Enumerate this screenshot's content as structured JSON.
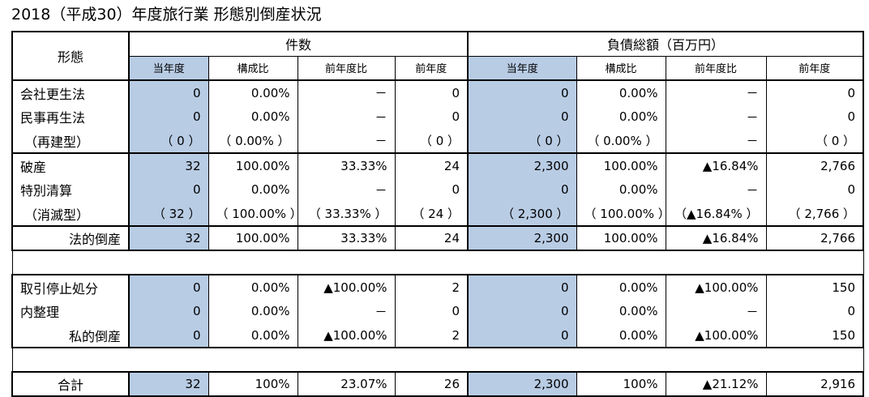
{
  "title": "2018（平成30）年度旅行業 形態別倒産状況",
  "headers": {
    "form": "形態",
    "count_group": "件数",
    "debt_group": "負債総額（百万円）",
    "sub": [
      "当年度",
      "構成比",
      "前年度比",
      "前年度",
      "当年度",
      "構成比",
      "前年度比",
      "前年度"
    ]
  },
  "groups": [
    {
      "rows": [
        {
          "label": "会社更生法",
          "align": "left",
          "cells": [
            "0",
            "0.00%",
            "－",
            "0",
            "0",
            "0.00%",
            "－",
            "0"
          ]
        },
        {
          "label": "民事再生法",
          "align": "left",
          "cells": [
            "0",
            "0.00%",
            "－",
            "0",
            "0",
            "0.00%",
            "－",
            "0"
          ]
        },
        {
          "label": "（再建型）",
          "align": "indent",
          "cells": [
            "（ 0 ）",
            "（ 0.00% ）",
            "－",
            "（ 0 ）",
            "（ 0 ）",
            "（ 0.00% ）",
            "－",
            "（ 0 ）"
          ]
        }
      ]
    },
    {
      "rows": [
        {
          "label": "破産",
          "align": "left",
          "cells": [
            "32",
            "100.00%",
            "33.33%",
            "24",
            "2,300",
            "100.00%",
            "▲16.84%",
            "2,766"
          ]
        },
        {
          "label": "特別清算",
          "align": "left",
          "cells": [
            "0",
            "0.00%",
            "－",
            "0",
            "0",
            "0.00%",
            "－",
            "0"
          ]
        },
        {
          "label": "（消滅型）",
          "align": "indent",
          "cells": [
            "（ 32 ）",
            "（ 100.00% ）",
            "（ 33.33% ）",
            "（ 24 ）",
            "（ 2,300 ）",
            "（ 100.00% ）",
            "（▲16.84% ）",
            "（ 2,766 ）"
          ]
        }
      ]
    },
    {
      "rows": [
        {
          "label": "法的倒産",
          "align": "right",
          "cells": [
            "32",
            "100.00%",
            "33.33%",
            "24",
            "2,300",
            "100.00%",
            "▲16.84%",
            "2,766"
          ]
        }
      ]
    },
    {
      "sep_before": true,
      "rows": [
        {
          "label": "取引停止処分",
          "align": "left",
          "cells": [
            "0",
            "0.00%",
            "▲100.00%",
            "2",
            "0",
            "0.00%",
            "▲100.00%",
            "150"
          ]
        },
        {
          "label": "内整理",
          "align": "left",
          "cells": [
            "0",
            "0.00%",
            "－",
            "0",
            "0",
            "0.00%",
            "－",
            "0"
          ]
        },
        {
          "label": "私的倒産",
          "align": "right",
          "cells": [
            "0",
            "0.00%",
            "▲100.00%",
            "2",
            "0",
            "0.00%",
            "▲100.00%",
            "150"
          ]
        }
      ]
    },
    {
      "sep_before": true,
      "rows": [
        {
          "label": "合計",
          "align": "center",
          "cells": [
            "32",
            "100%",
            "23.07%",
            "26",
            "2,300",
            "100%",
            "▲21.12%",
            "2,916"
          ]
        }
      ]
    }
  ],
  "colors": {
    "current_year_fill": "#b8cce4",
    "border": "#000000"
  }
}
